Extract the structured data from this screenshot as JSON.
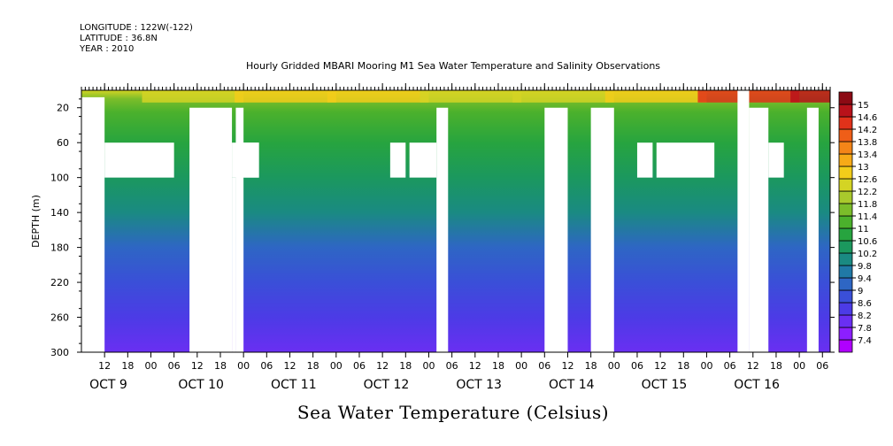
{
  "header": {
    "longitude": "LONGITUDE : 122W(-122)",
    "latitude": "LATITUDE : 36.8N",
    "year": "YEAR : 2010"
  },
  "title": "Hourly Gridded MBARI Mooring M1 Sea Water Temperature and Salinity Observations",
  "bottom_title": "Sea Water Temperature (Celsius)",
  "chart_data": {
    "type": "heatmap",
    "title": "Hourly Gridded MBARI Mooring M1 Sea Water Temperature and Salinity Observations",
    "xlabel": "",
    "ylabel": "DEPTH (m)",
    "y_reversed": true,
    "ylim": [
      300,
      0
    ],
    "xlim": [
      "2010-10-08T06:00",
      "2010-10-16T08:00"
    ],
    "y_ticks": [
      20,
      60,
      100,
      140,
      180,
      220,
      260,
      300
    ],
    "x_hour_ticks": [
      {
        "t": "2010-10-08T12:00",
        "label": "12"
      },
      {
        "t": "2010-10-08T18:00",
        "label": "18"
      },
      {
        "t": "2010-10-09T00:00",
        "label": "00"
      },
      {
        "t": "2010-10-09T06:00",
        "label": "06"
      },
      {
        "t": "2010-10-09T12:00",
        "label": "12"
      },
      {
        "t": "2010-10-09T18:00",
        "label": "18"
      },
      {
        "t": "2010-10-10T00:00",
        "label": "00"
      },
      {
        "t": "2010-10-10T06:00",
        "label": "06"
      },
      {
        "t": "2010-10-10T12:00",
        "label": "12"
      },
      {
        "t": "2010-10-10T18:00",
        "label": "18"
      },
      {
        "t": "2010-10-11T00:00",
        "label": "00"
      },
      {
        "t": "2010-10-11T06:00",
        "label": "06"
      },
      {
        "t": "2010-10-11T12:00",
        "label": "12"
      },
      {
        "t": "2010-10-11T18:00",
        "label": "18"
      },
      {
        "t": "2010-10-12T00:00",
        "label": "00"
      },
      {
        "t": "2010-10-12T06:00",
        "label": "06"
      },
      {
        "t": "2010-10-12T12:00",
        "label": "12"
      },
      {
        "t": "2010-10-12T18:00",
        "label": "18"
      },
      {
        "t": "2010-10-13T00:00",
        "label": "00"
      },
      {
        "t": "2010-10-13T06:00",
        "label": "06"
      },
      {
        "t": "2010-10-13T12:00",
        "label": "12"
      },
      {
        "t": "2010-10-13T18:00",
        "label": "18"
      },
      {
        "t": "2010-10-14T00:00",
        "label": "00"
      },
      {
        "t": "2010-10-14T06:00",
        "label": "06"
      },
      {
        "t": "2010-10-14T12:00",
        "label": "12"
      },
      {
        "t": "2010-10-14T18:00",
        "label": "18"
      },
      {
        "t": "2010-10-15T00:00",
        "label": "00"
      },
      {
        "t": "2010-10-15T06:00",
        "label": "06"
      },
      {
        "t": "2010-10-15T12:00",
        "label": "12"
      },
      {
        "t": "2010-10-15T18:00",
        "label": "18"
      },
      {
        "t": "2010-10-16T00:00",
        "label": "00"
      },
      {
        "t": "2010-10-16T06:00",
        "label": "06"
      }
    ],
    "x_day_labels": [
      {
        "t": "2010-10-09T00:00",
        "label": "OCT  9"
      },
      {
        "t": "2010-10-10T00:00",
        "label": "OCT 10"
      },
      {
        "t": "2010-10-11T00:00",
        "label": "OCT 11"
      },
      {
        "t": "2010-10-12T00:00",
        "label": "OCT 12"
      },
      {
        "t": "2010-10-13T00:00",
        "label": "OCT 13"
      },
      {
        "t": "2010-10-14T00:00",
        "label": "OCT 14"
      },
      {
        "t": "2010-10-15T00:00",
        "label": "OCT 15"
      },
      {
        "t": "2010-10-16T00:00",
        "label": "OCT 16"
      }
    ],
    "colorbar": {
      "levels": [
        7.4,
        7.8,
        8.2,
        8.6,
        9,
        9.4,
        9.8,
        10.2,
        10.6,
        11,
        11.4,
        11.8,
        12.2,
        12.6,
        13,
        13.4,
        13.8,
        14.2,
        14.6,
        15
      ],
      "colors": [
        "#b000ff",
        "#8c1fff",
        "#6a2ff2",
        "#4c3be6",
        "#3a4fd8",
        "#2e66c4",
        "#2079a6",
        "#1a8a82",
        "#1b985e",
        "#27a43f",
        "#4bb12c",
        "#7bbd2a",
        "#a9c92c",
        "#d4d424",
        "#f2cd1a",
        "#f7aa17",
        "#f48518",
        "#ef5e18",
        "#e1321a",
        "#b8121a",
        "#8c0a14"
      ]
    },
    "profile": [
      {
        "depth": 0,
        "value": 12.2
      },
      {
        "depth": 10,
        "value": 11.6
      },
      {
        "depth": 25,
        "value": 11.0
      },
      {
        "depth": 60,
        "value": 10.8
      },
      {
        "depth": 100,
        "value": 10.2
      },
      {
        "depth": 140,
        "value": 9.8
      },
      {
        "depth": 180,
        "value": 9.1
      },
      {
        "depth": 220,
        "value": 8.6
      },
      {
        "depth": 260,
        "value": 8.2
      },
      {
        "depth": 300,
        "value": 7.9
      }
    ],
    "missing_data": [
      {
        "t0": "2010-10-08T06:00",
        "t1": "2010-10-08T12:00",
        "d0": 8,
        "d1": 300
      },
      {
        "t0": "2010-10-08T12:00",
        "t1": "2010-10-09T06:00",
        "d0": 60,
        "d1": 100
      },
      {
        "t0": "2010-10-09T10:00",
        "t1": "2010-10-09T21:00",
        "d0": 20,
        "d1": 300
      },
      {
        "t0": "2010-10-09T21:00",
        "t1": "2010-10-10T04:00",
        "d0": 60,
        "d1": 100
      },
      {
        "t0": "2010-10-09T21:00",
        "t1": "2010-10-09T22:00",
        "d0": 100,
        "d1": 300
      },
      {
        "t0": "2010-10-09T22:00",
        "t1": "2010-10-10T00:00",
        "d0": 20,
        "d1": 300
      },
      {
        "t0": "2010-10-10T00:00",
        "t1": "2010-10-10T04:00",
        "d0": 60,
        "d1": 100
      },
      {
        "t0": "2010-10-11T14:00",
        "t1": "2010-10-11T18:00",
        "d0": 60,
        "d1": 100
      },
      {
        "t0": "2010-10-11T19:00",
        "t1": "2010-10-12T02:00",
        "d0": 60,
        "d1": 100
      },
      {
        "t0": "2010-10-12T02:00",
        "t1": "2010-10-12T05:00",
        "d0": 20,
        "d1": 300
      },
      {
        "t0": "2010-10-13T06:00",
        "t1": "2010-10-13T12:00",
        "d0": 20,
        "d1": 300
      },
      {
        "t0": "2010-10-13T18:00",
        "t1": "2010-10-14T00:00",
        "d0": 20,
        "d1": 300
      },
      {
        "t0": "2010-10-14T06:00",
        "t1": "2010-10-14T10:00",
        "d0": 60,
        "d1": 100
      },
      {
        "t0": "2010-10-14T11:00",
        "t1": "2010-10-15T02:00",
        "d0": 60,
        "d1": 100
      },
      {
        "t0": "2010-10-15T08:00",
        "t1": "2010-10-15T11:00",
        "d0": 0,
        "d1": 300
      },
      {
        "t0": "2010-10-15T11:00",
        "t1": "2010-10-15T16:00",
        "d0": 20,
        "d1": 300
      },
      {
        "t0": "2010-10-15T16:00",
        "t1": "2010-10-15T20:00",
        "d0": 60,
        "d1": 100
      },
      {
        "t0": "2010-10-16T02:00",
        "t1": "2010-10-16T05:00",
        "d0": 20,
        "d1": 300
      }
    ]
  }
}
